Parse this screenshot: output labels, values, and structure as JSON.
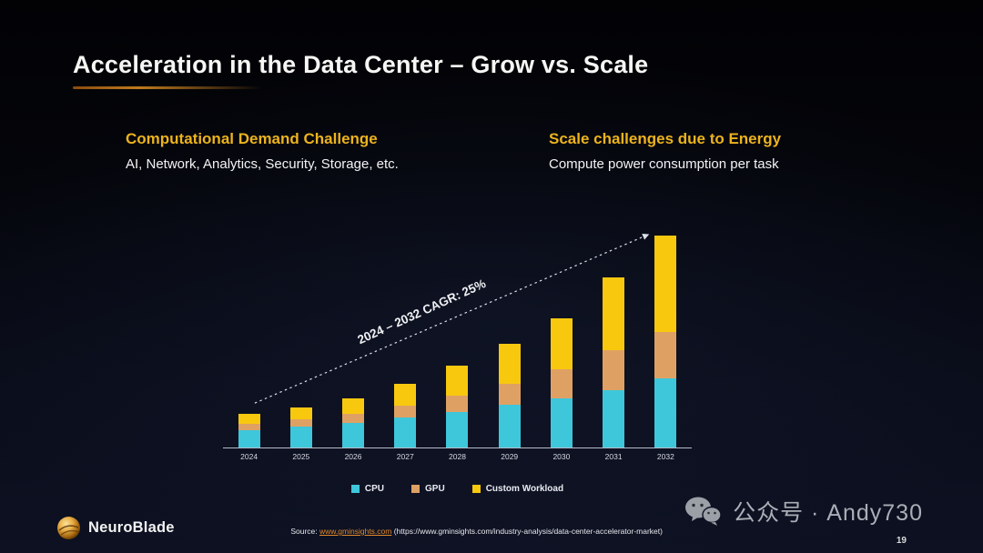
{
  "title": "Acceleration  in the Data Center – Grow vs. Scale",
  "columns": {
    "left": {
      "heading": "Computational Demand Challenge",
      "subheading": "AI, Network, Analytics, Security, Storage, etc."
    },
    "right": {
      "heading": "Scale challenges due to Energy",
      "subheading": "Compute power consumption per task"
    }
  },
  "chart_data": {
    "type": "bar",
    "stacked": true,
    "title": "",
    "xlabel": "",
    "ylabel": "",
    "grid": false,
    "legend_position": "bottom",
    "ylim": [
      0,
      250
    ],
    "categories": [
      "2024",
      "2025",
      "2026",
      "2027",
      "2028",
      "2029",
      "2030",
      "2031",
      "2032"
    ],
    "series": [
      {
        "name": "CPU",
        "color": "#3ec6da",
        "values": [
          20,
          24,
          28,
          34,
          40,
          48,
          55,
          65,
          78
        ]
      },
      {
        "name": "GPU",
        "color": "#dfa163",
        "values": [
          7,
          8,
          10,
          13,
          18,
          24,
          33,
          45,
          52
        ]
      },
      {
        "name": "Custom Workload",
        "color": "#f8c80f",
        "values": [
          11,
          13,
          17,
          25,
          34,
          45,
          58,
          82,
          109
        ]
      }
    ],
    "annotation": "2024 – 2032 CAGR: 25%"
  },
  "footer": {
    "logo_text": "NeuroBlade",
    "source_prefix": "Source: ",
    "source_link": "www.gminsights.com",
    "source_rest": " (https://www.gminsights.com/industry-analysis/data-center-accelerator-market)",
    "wechat_text": "公众号 · Andy730",
    "page_number": "19"
  }
}
